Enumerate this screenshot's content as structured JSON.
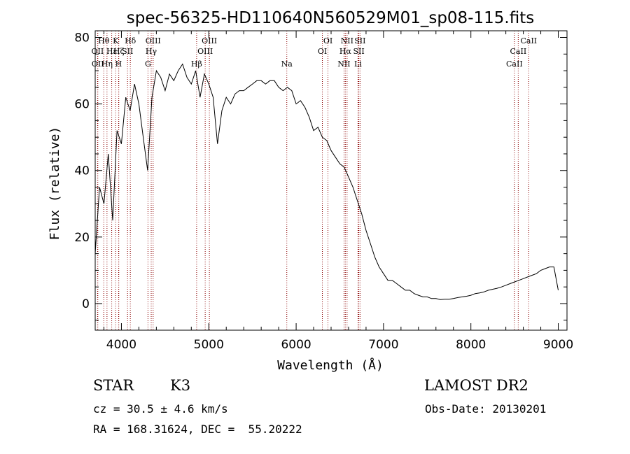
{
  "chart_data": {
    "type": "line",
    "title": "spec-56325-HD110640N560529M01_sp08-115.fits",
    "xlabel": "Wavelength (Å)",
    "ylabel": "Flux (relative)",
    "xlim": [
      3700,
      9100
    ],
    "ylim": [
      -8,
      82
    ],
    "xticks": [
      4000,
      5000,
      6000,
      7000,
      8000,
      9000
    ],
    "yticks": [
      0,
      20,
      40,
      60,
      80
    ],
    "grid": false,
    "line_color": "#000000",
    "marker_color": "#8b0000",
    "series": [
      {
        "x": [
          3700,
          3750,
          3800,
          3850,
          3900,
          3950,
          4000,
          4050,
          4100,
          4150,
          4200,
          4250,
          4300,
          4350,
          4400,
          4450,
          4500,
          4550,
          4600,
          4650,
          4700,
          4750,
          4800,
          4850,
          4900,
          4950,
          5000,
          5050,
          5100,
          5150,
          5200,
          5250,
          5300,
          5350,
          5400,
          5450,
          5500,
          5550,
          5600,
          5650,
          5700,
          5750,
          5800,
          5850,
          5900,
          5950,
          6000,
          6050,
          6100,
          6150,
          6200,
          6250,
          6300,
          6350,
          6400,
          6450,
          6500,
          6550,
          6600,
          6650,
          6700,
          6750,
          6800,
          6850,
          6900,
          6950,
          7000,
          7050,
          7100,
          7150,
          7200,
          7250,
          7300,
          7350,
          7400,
          7450,
          7500,
          7550,
          7600,
          7650,
          7700,
          7750,
          7800,
          7850,
          7900,
          7950,
          8000,
          8050,
          8100,
          8150,
          8200,
          8250,
          8300,
          8350,
          8400,
          8450,
          8500,
          8550,
          8600,
          8650,
          8700,
          8750,
          8800,
          8850,
          8900,
          8950,
          9000
        ],
        "y": [
          15,
          35,
          30,
          45,
          25,
          52,
          48,
          62,
          58,
          66,
          60,
          50,
          40,
          62,
          70,
          68,
          64,
          69,
          67,
          70,
          72,
          68,
          66,
          70,
          62,
          69,
          66,
          62,
          48,
          58,
          62,
          60,
          63,
          64,
          64,
          65,
          66,
          67,
          67,
          66,
          67,
          67,
          65,
          64,
          65,
          64,
          60,
          61,
          59,
          56,
          52,
          53,
          50,
          49,
          46,
          44,
          42,
          41,
          38,
          35,
          31,
          27,
          22,
          18,
          14,
          11,
          9,
          7,
          7,
          6,
          5,
          4,
          4,
          3,
          2.5,
          2,
          2,
          1.5,
          1.5,
          1.2,
          1.3,
          1.3,
          1.5,
          1.8,
          2,
          2.2,
          2.5,
          3,
          3.2,
          3.5,
          4,
          4.3,
          4.6,
          5,
          5.5,
          6,
          6.5,
          7,
          7.5,
          8,
          8.5,
          9,
          10,
          10.5,
          11,
          11,
          4
        ]
      }
    ],
    "lines": [
      {
        "label": "OII",
        "x": 3727,
        "row": 2
      },
      {
        "label": "OII",
        "x": 3730,
        "row": 3
      },
      {
        "label": "Hθ",
        "x": 3798,
        "row": 1
      },
      {
        "label": "Hη",
        "x": 3835,
        "row": 3
      },
      {
        "label": "Hε",
        "x": 3889,
        "row": 2
      },
      {
        "label": "Hζ",
        "x": 3970,
        "row": 2
      },
      {
        "label": "K",
        "x": 3934,
        "row": 1
      },
      {
        "label": "H",
        "x": 3968,
        "row": 3
      },
      {
        "label": "Hδ",
        "x": 4102,
        "row": 1
      },
      {
        "label": "SII",
        "x": 4070,
        "row": 2
      },
      {
        "label": "G",
        "x": 4304,
        "row": 3
      },
      {
        "label": "Hγ",
        "x": 4341,
        "row": 2
      },
      {
        "label": "OIII",
        "x": 4363,
        "row": 1
      },
      {
        "label": "Hβ",
        "x": 4861,
        "row": 3
      },
      {
        "label": "OIII",
        "x": 4959,
        "row": 2
      },
      {
        "label": "OIII",
        "x": 5007,
        "row": 1
      },
      {
        "label": "Na",
        "x": 5893,
        "row": 3
      },
      {
        "label": "OI",
        "x": 6300,
        "row": 2
      },
      {
        "label": "OI",
        "x": 6364,
        "row": 1
      },
      {
        "label": "NII",
        "x": 6548,
        "row": 3
      },
      {
        "label": "Hα",
        "x": 6563,
        "row": 2
      },
      {
        "label": "NII",
        "x": 6583,
        "row": 1
      },
      {
        "label": "Li",
        "x": 6708,
        "row": 3
      },
      {
        "label": "SII",
        "x": 6717,
        "row": 2
      },
      {
        "label": "SII",
        "x": 6731,
        "row": 1
      },
      {
        "label": "CaII",
        "x": 8498,
        "row": 3
      },
      {
        "label": "CaII",
        "x": 8542,
        "row": 2
      },
      {
        "label": "CaII",
        "x": 8662,
        "row": 1
      }
    ]
  },
  "info": {
    "object_class": "STAR",
    "subclass": "K3",
    "survey": "LAMOST DR2",
    "cz": "cz = 30.5 ± 4.6 km/s",
    "obs_date": "Obs-Date: 20130201",
    "coords": "RA = 168.31624, DEC =  55.20222"
  }
}
